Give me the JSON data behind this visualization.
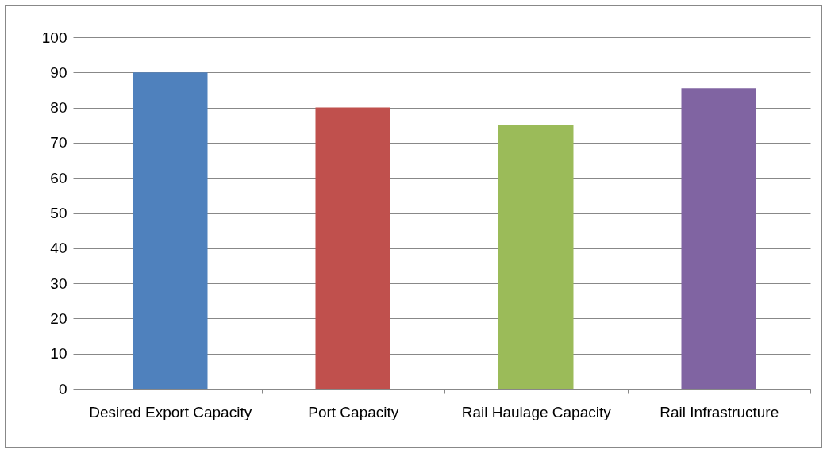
{
  "chart_data": {
    "type": "bar",
    "categories": [
      "Desired Export Capacity",
      "Port Capacity",
      "Rail Haulage Capacity",
      "Rail Infrastructure"
    ],
    "values": [
      90,
      80,
      75,
      85.5
    ],
    "colors": [
      "#4f81bd",
      "#c0504d",
      "#9bbb59",
      "#8064a2"
    ],
    "ylim": [
      0,
      100
    ],
    "yticks": [
      0,
      10,
      20,
      30,
      40,
      50,
      60,
      70,
      80,
      90,
      100
    ],
    "grid": "y",
    "legend": false
  }
}
